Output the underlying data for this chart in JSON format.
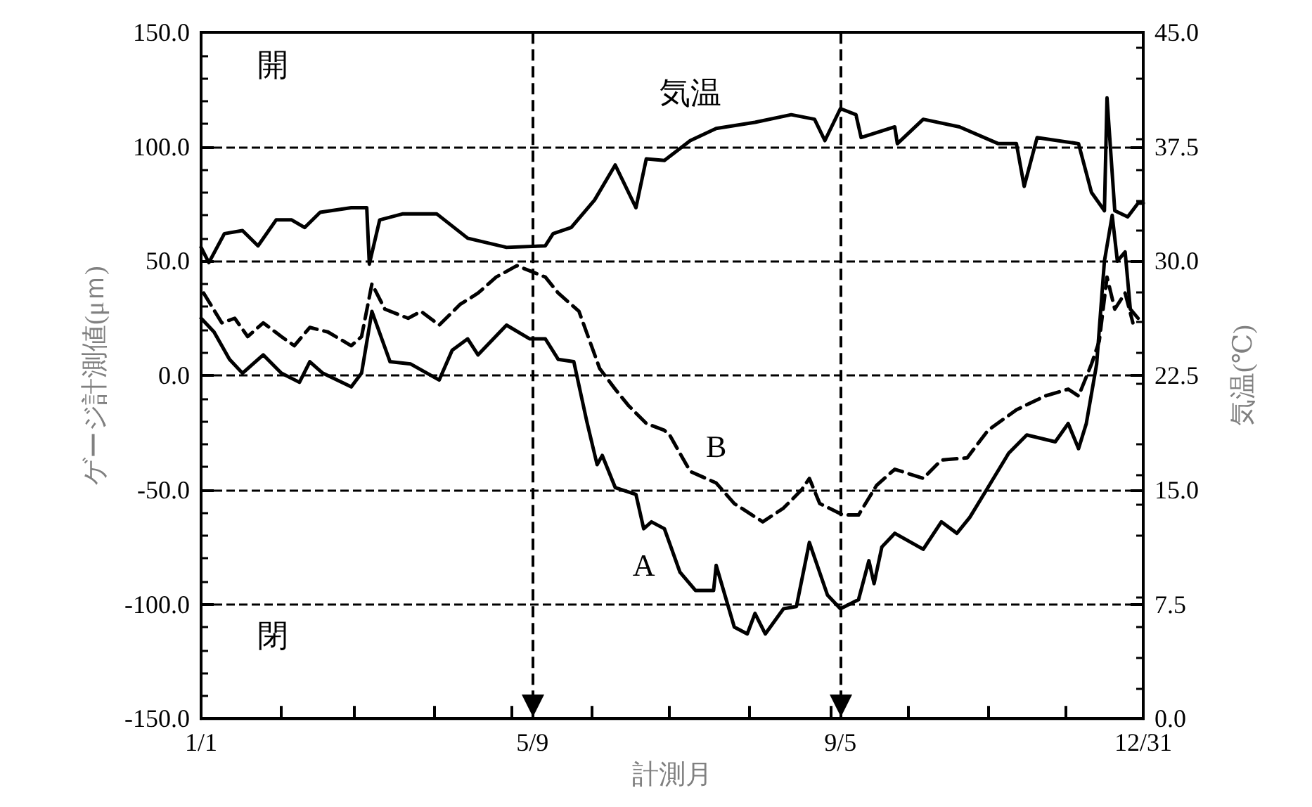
{
  "chart_data": {
    "type": "line",
    "xlabel": "計測月",
    "ylabel": "ゲージ計測値(μｍ)",
    "y2label": "気温(℃)",
    "annotations": [
      "開",
      "閉"
    ],
    "xlim": [
      "--01-01",
      "--12-31"
    ],
    "xticks": [
      {
        "value": "--01-01",
        "label": "1/1"
      },
      {
        "value": "--02-01",
        "label": null
      },
      {
        "value": "--03-01",
        "label": null
      },
      {
        "value": "--04-01",
        "label": null
      },
      {
        "value": "--05-01",
        "label": null
      },
      {
        "value": "--05-09",
        "label": "5/9"
      },
      {
        "value": "--06-01",
        "label": null
      },
      {
        "value": "--07-01",
        "label": null
      },
      {
        "value": "--08-01",
        "label": null
      },
      {
        "value": "--09-01",
        "label": null
      },
      {
        "value": "--09-05",
        "label": "9/5"
      },
      {
        "value": "--10-01",
        "label": null
      },
      {
        "value": "--11-01",
        "label": null
      },
      {
        "value": "--12-01",
        "label": null
      },
      {
        "value": "--12-31",
        "label": "12/31"
      }
    ],
    "ylim": [
      -150,
      150
    ],
    "yticks": [
      {
        "value": -150,
        "label": "-150.0"
      },
      {
        "value": -100,
        "label": "-100.0"
      },
      {
        "value": -50,
        "label": "-50.0"
      },
      {
        "value": 0,
        "label": "0.0"
      },
      {
        "value": 50,
        "label": "50.0"
      },
      {
        "value": 100,
        "label": "100.0"
      },
      {
        "value": 150,
        "label": "150.0"
      }
    ],
    "y2lim": [
      0,
      45
    ],
    "y2ticks": [
      {
        "value": 0,
        "label": "0.0"
      },
      7.5,
      {
        "value": 15,
        "label": "15.0"
      },
      22.5,
      {
        "value": 30,
        "label": "30.0"
      },
      37.5,
      {
        "value": 45,
        "label": "45.0"
      }
    ],
    "grid": "y",
    "legend": false,
    "marker": "none",
    "ref_lines": [
      {
        "axis": "x",
        "value": "--05-09",
        "color": "#000000",
        "line_style": "dashed"
      },
      {
        "axis": "x",
        "value": "--09-05",
        "color": "#000000",
        "line_style": "dashed"
      }
    ],
    "series": [
      {
        "name": "A",
        "color": "#000000",
        "line_style": "solid",
        "x": [
          "--01-01",
          "--01-06",
          "--01-12",
          "--01-17",
          "--01-25",
          "--02-01",
          "--02-08",
          "--02-12",
          "--02-17",
          "--02-28",
          "--03-04",
          "--03-08",
          "--03-15",
          "--03-23",
          "--04-03",
          "--04-08",
          "--04-14",
          "--04-18",
          "--04-29",
          "--05-08",
          "--05-14",
          "--05-19",
          "--05-25",
          "--05-30",
          "--06-03",
          "--06-05",
          "--06-10",
          "--06-18",
          "--06-21",
          "--06-24",
          "--06-29",
          "--07-05",
          "--07-11",
          "--07-18",
          "--07-19",
          "--07-26",
          "--07-31",
          "--08-03",
          "--08-07",
          "--08-14",
          "--08-19",
          "--08-24",
          "--08-31",
          "--09-05",
          "--09-12",
          "--09-16",
          "--09-18",
          "--09-21",
          "--09-26",
          "--10-07",
          "--10-14",
          "--10-20",
          "--10-25",
          "--11-01",
          "--11-09",
          "--11-16",
          "--11-27",
          "--12-02",
          "--12-06",
          "--12-09",
          "--12-13",
          "--12-16",
          "--12-19",
          "--12-21",
          "--12-24",
          "--12-26",
          "--12-29"
        ],
        "values": [
          25,
          19,
          7,
          1,
          9,
          1,
          -3,
          6,
          1,
          -5,
          1,
          28,
          6,
          5,
          -2,
          11,
          16,
          9,
          22,
          16,
          16,
          7,
          6,
          -20,
          -39,
          -35,
          -49,
          -52,
          -67,
          -64,
          -67,
          -86,
          -94,
          -94,
          -83,
          -110,
          -113,
          -104,
          -113,
          -102,
          -101,
          -73,
          -96,
          -102,
          -98,
          -81,
          -91,
          -75,
          -69,
          -76,
          -64,
          -69,
          -62,
          -49,
          -34,
          -26,
          -29,
          -21,
          -32,
          -21,
          5,
          50,
          70,
          50,
          54,
          29,
          25
        ]
      },
      {
        "name": "B",
        "color": "#000000",
        "line_style": "dashed",
        "x": [
          "--01-02",
          "--01-09",
          "--01-14",
          "--01-19",
          "--01-25",
          "--02-01",
          "--02-06",
          "--02-12",
          "--02-19",
          "--02-28",
          "--03-04",
          "--03-08",
          "--03-13",
          "--03-22",
          "--03-27",
          "--04-03",
          "--04-11",
          "--04-18",
          "--04-25",
          "--05-03",
          "--05-14",
          "--05-19",
          "--05-24",
          "--05-27",
          "--06-04",
          "--06-10",
          "--06-15",
          "--06-22",
          "--06-29",
          "--07-01",
          "--07-09",
          "--07-19",
          "--07-26",
          "--08-06",
          "--08-14",
          "--08-21",
          "--08-24",
          "--08-28",
          "--09-06",
          "--09-12",
          "--09-19",
          "--09-26",
          "--10-07",
          "--10-14",
          "--10-24",
          "--11-01",
          "--11-12",
          "--11-23",
          "--12-02",
          "--12-06",
          "--12-11",
          "--12-14",
          "--12-17",
          "--12-20",
          "--12-24",
          "--12-27"
        ],
        "values": [
          36,
          23,
          25,
          17,
          23,
          17,
          13,
          21,
          19,
          13,
          17,
          40,
          29,
          25,
          28,
          22,
          31,
          36,
          43,
          48,
          43,
          36,
          31,
          28,
          3,
          -6,
          -13,
          -21,
          -24,
          -26,
          -42,
          -47,
          -56,
          -64,
          -58,
          -50,
          -45,
          -56,
          -61,
          -61,
          -48,
          -41,
          -45,
          -37,
          -36,
          -24,
          -15,
          -9,
          -6,
          -9,
          5,
          15,
          43,
          29,
          36,
          23
        ]
      },
      {
        "name": "気温",
        "color": "#000000",
        "line_style": "solid",
        "axis": "y2",
        "x": [
          "--01-01",
          "--01-04",
          "--01-10",
          "--01-17",
          "--01-23",
          "--01-30",
          "--02-05",
          "--02-10",
          "--02-16",
          "--02-28",
          "--03-06",
          "--03-07",
          "--03-11",
          "--03-20",
          "--04-02",
          "--04-14",
          "--04-29",
          "--05-14",
          "--05-17",
          "--05-24",
          "--06-02",
          "--06-10",
          "--06-18",
          "--06-22",
          "--06-29",
          "--07-09",
          "--07-19",
          "--08-03",
          "--08-17",
          "--08-26",
          "--08-30",
          "--09-05",
          "--09-11",
          "--09-13",
          "--09-26",
          "--09-27",
          "--10-07",
          "--10-21",
          "--11-05",
          "--11-12",
          "--11-15",
          "--11-20",
          "--12-06",
          "--12-11",
          "--12-16",
          "--12-17",
          "--12-20",
          "--12-25",
          "--12-29",
          "--12-31"
        ],
        "values": [
          30.9,
          29.9,
          31.8,
          32.0,
          31.0,
          32.7,
          32.7,
          32.2,
          33.2,
          33.5,
          33.5,
          29.8,
          32.7,
          33.1,
          33.1,
          31.5,
          30.9,
          31.0,
          31.8,
          32.2,
          34.0,
          36.3,
          33.5,
          36.7,
          36.6,
          37.9,
          38.7,
          39.1,
          39.6,
          39.3,
          37.9,
          40.0,
          39.6,
          38.1,
          38.8,
          37.7,
          39.3,
          38.8,
          37.7,
          37.7,
          34.9,
          38.1,
          37.7,
          34.5,
          33.3,
          40.7,
          33.3,
          32.9,
          33.8,
          33.8
        ]
      }
    ]
  }
}
